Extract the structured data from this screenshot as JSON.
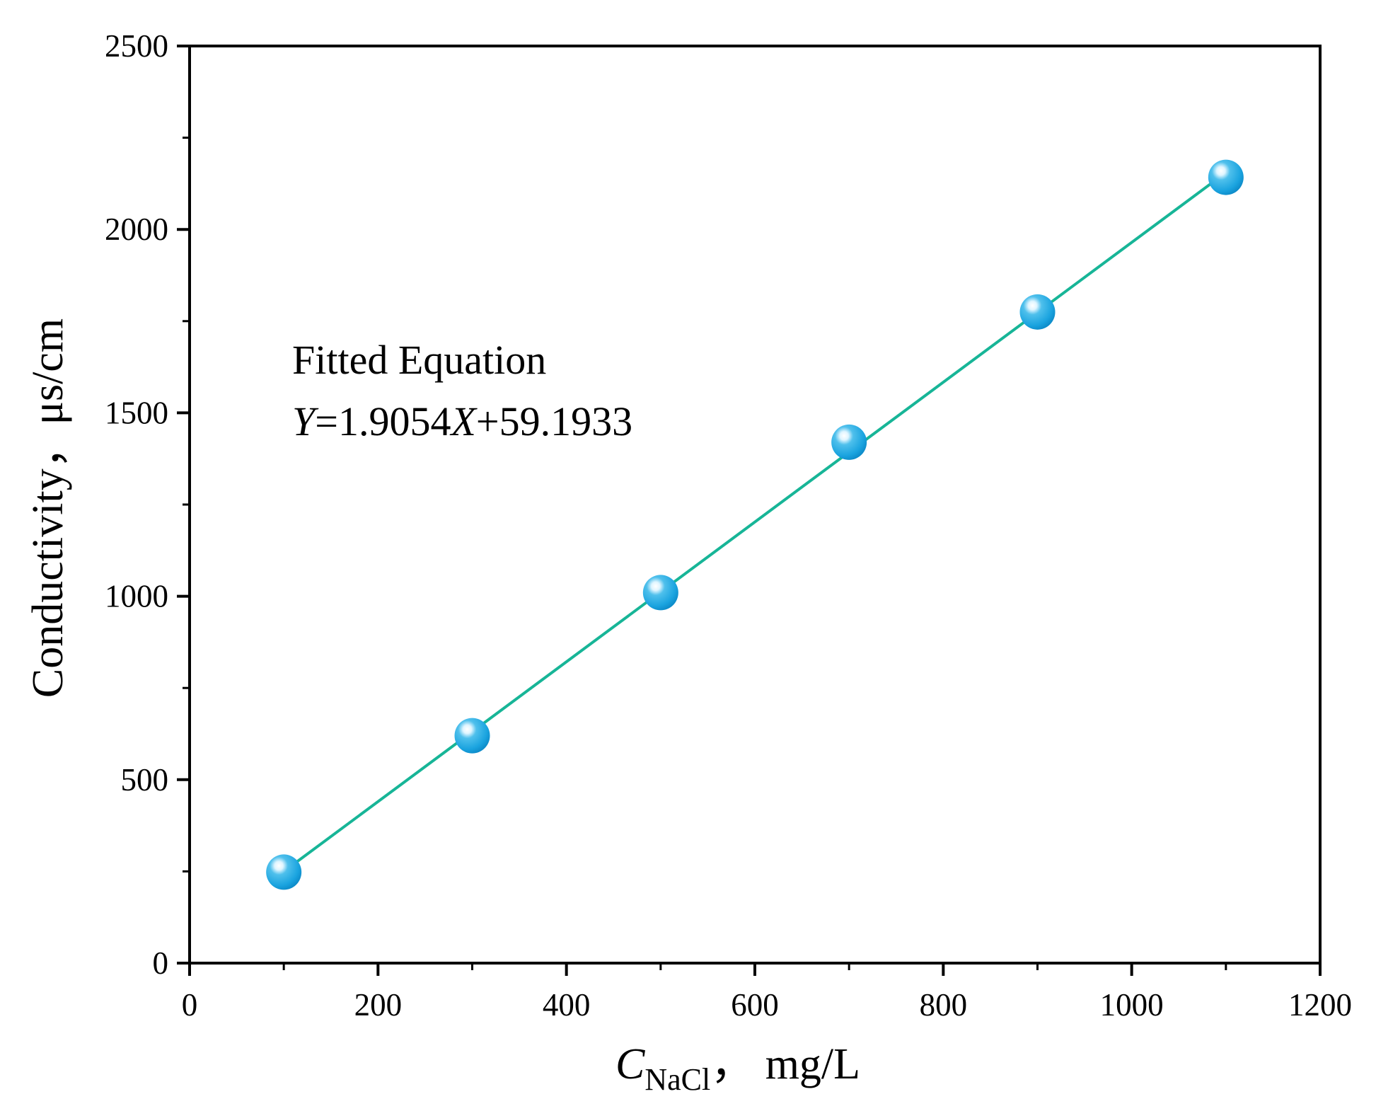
{
  "chart_data": {
    "type": "scatter",
    "x": [
      100,
      300,
      500,
      700,
      900,
      1100
    ],
    "y": [
      248,
      620,
      1010,
      1420,
      1775,
      2142
    ],
    "xlim": [
      0,
      1200
    ],
    "ylim": [
      0,
      2500
    ],
    "x_major_ticks": [
      0,
      200,
      400,
      600,
      800,
      1000,
      1200
    ],
    "x_minor_ticks": [
      100,
      300,
      500,
      700,
      900,
      1100
    ],
    "y_major_ticks": [
      0,
      500,
      1000,
      1500,
      2000,
      2500
    ],
    "y_minor_ticks": [
      250,
      750,
      1250,
      1750,
      2250
    ],
    "x_tick_labels": [
      "0",
      "200",
      "400",
      "600",
      "800",
      "1000",
      "1200"
    ],
    "y_tick_labels": [
      "0",
      "500",
      "1000",
      "1500",
      "2000",
      "2500"
    ],
    "xlabel": {
      "main": "C",
      "subscript": "NaCl",
      "rest": "，  mg/L"
    },
    "ylabel": "Conductivity，μs/cm",
    "fit": {
      "slope": 1.9054,
      "intercept": 59.1933,
      "x_range": [
        100,
        1100
      ]
    },
    "annotation": {
      "line1": "Fitted Equation",
      "line2_y": "Y",
      "line2_eq": "=1.9054",
      "line2_x": "X",
      "line2_rest": "+59.1933"
    },
    "grid": false,
    "legend": "none",
    "colors": {
      "marker": "#1aa3df",
      "fit_line": "#17b597",
      "axis": "#000000"
    }
  }
}
